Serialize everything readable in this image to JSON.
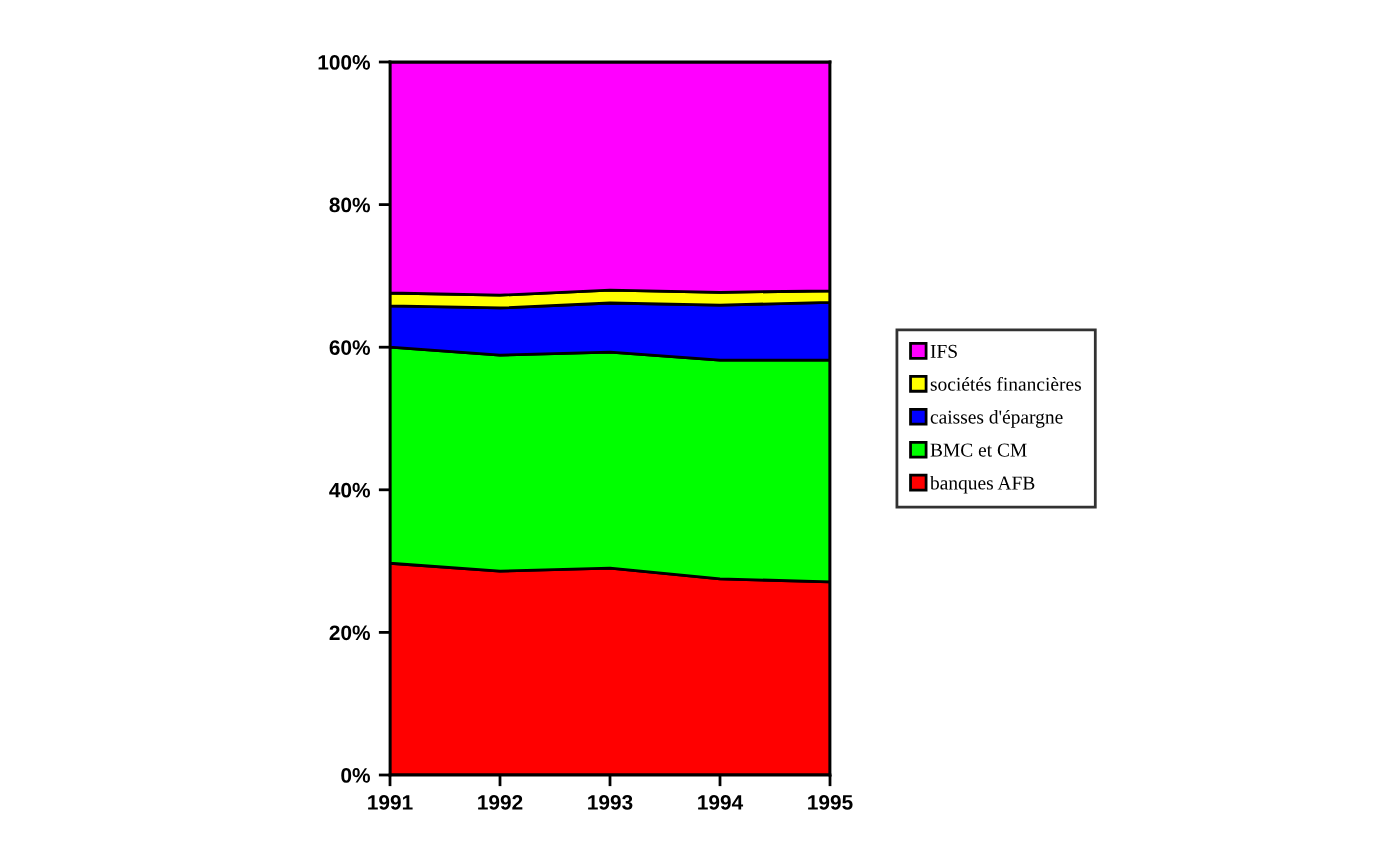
{
  "chart_data": {
    "type": "area",
    "stacked": true,
    "categories": [
      "1991",
      "1992",
      "1993",
      "1994",
      "1995"
    ],
    "series": [
      {
        "name": "banques AFB",
        "color": "#ff0000",
        "values": [
          29.7,
          28.6,
          29.0,
          27.5,
          27.1
        ]
      },
      {
        "name": "BMC et CM",
        "color": "#00ff00",
        "values": [
          30.3,
          30.3,
          30.3,
          30.7,
          31.1
        ]
      },
      {
        "name": "caisses d'épargne",
        "color": "#0000ff",
        "values": [
          5.8,
          6.6,
          6.9,
          7.7,
          8.1
        ]
      },
      {
        "name": "sociétés financières",
        "color": "#ffff00",
        "values": [
          1.8,
          1.8,
          1.8,
          1.8,
          1.6
        ]
      },
      {
        "name": "IFS",
        "color": "#ff00ff",
        "values": [
          32.4,
          32.7,
          32.0,
          32.3,
          32.1
        ]
      }
    ],
    "ylim": [
      0,
      100
    ],
    "yticks": [
      {
        "value": 0,
        "label": "0%"
      },
      {
        "value": 20,
        "label": "20%"
      },
      {
        "value": 40,
        "label": "40%"
      },
      {
        "value": 60,
        "label": "60%"
      },
      {
        "value": 80,
        "label": "80%"
      },
      {
        "value": 100,
        "label": "100%"
      }
    ],
    "grid": false,
    "legend": "right"
  }
}
